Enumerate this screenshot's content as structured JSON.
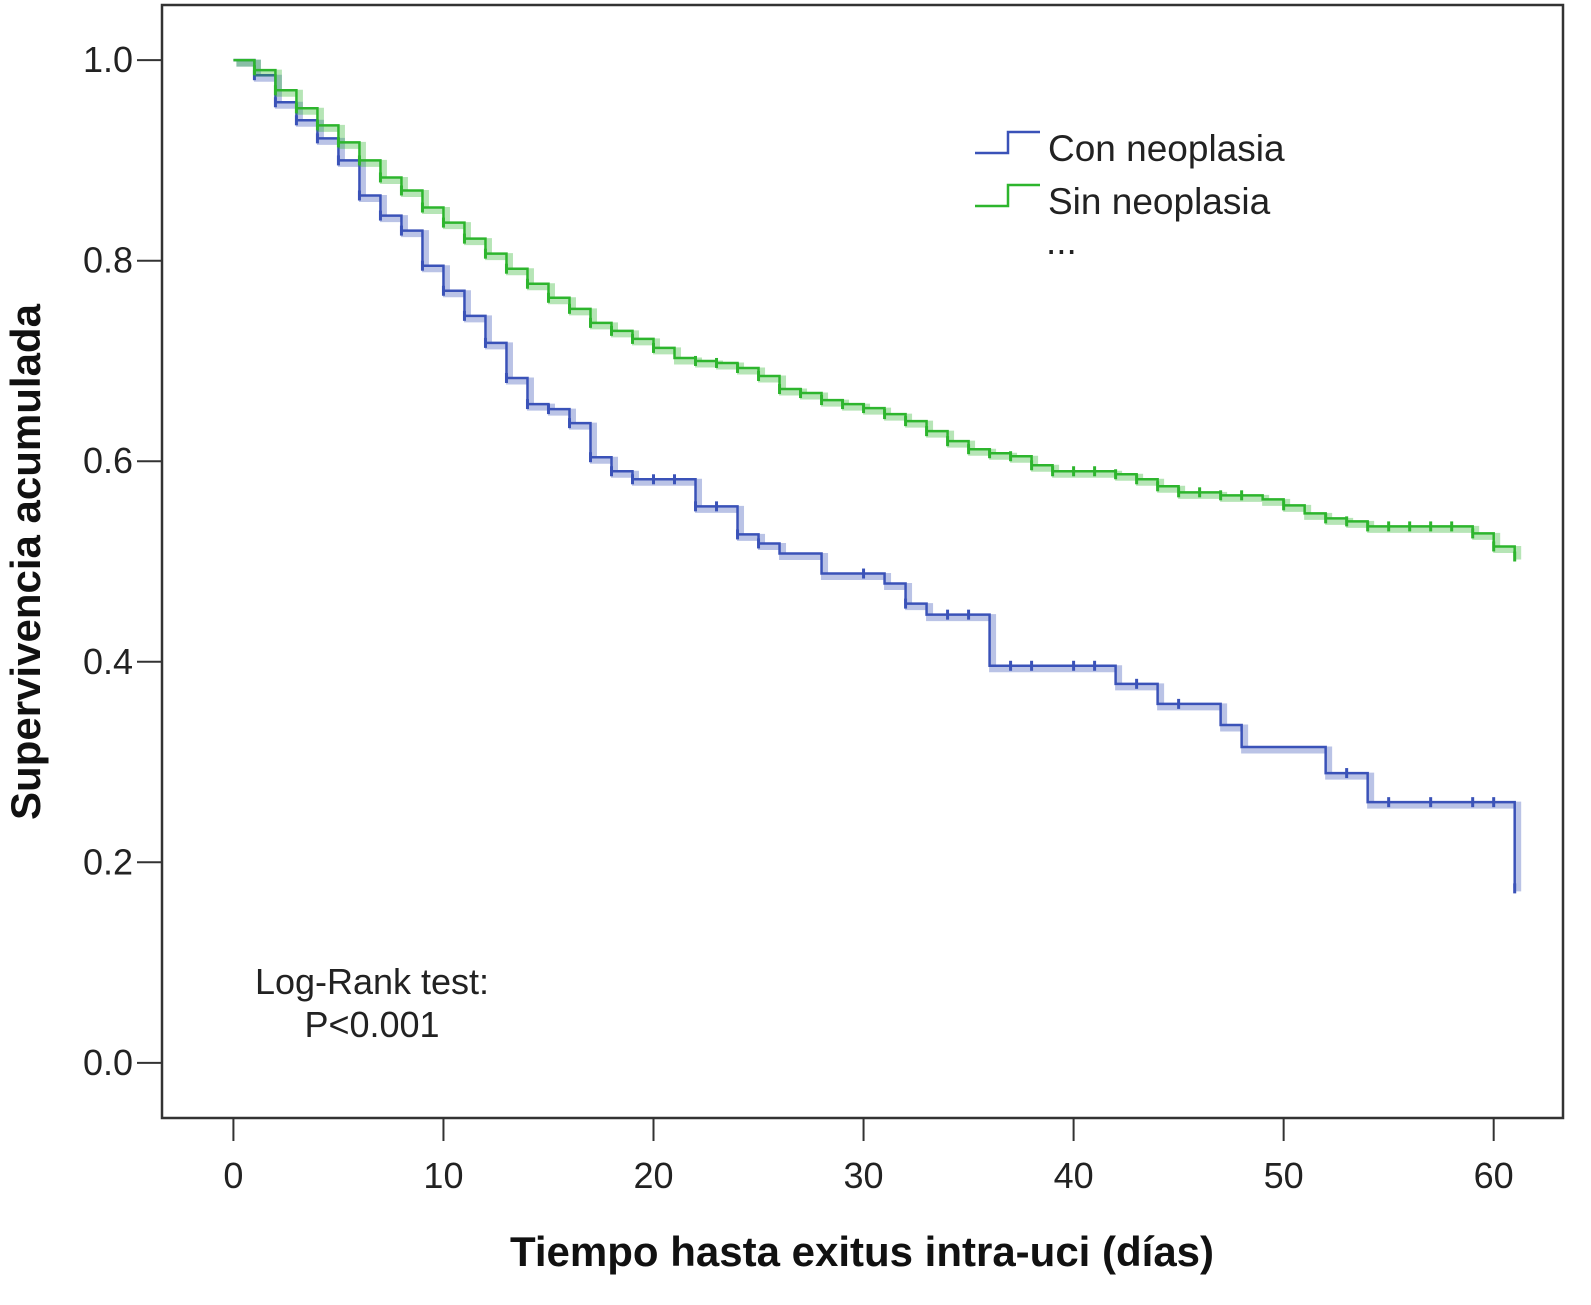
{
  "chart_data": {
    "type": "line",
    "subtype": "kaplan-meier-step",
    "title": "",
    "xlabel": "Tiempo hasta exitus intra-uci (días)",
    "ylabel": "Supervivencia acumulada",
    "xlim": [
      -3.4,
      63.3
    ],
    "ylim": [
      -0.055,
      1.055
    ],
    "xticks": [
      0,
      10,
      20,
      30,
      40,
      50,
      60
    ],
    "xtick_labels": [
      "0",
      "10",
      "20",
      "30",
      "40",
      "50",
      "60"
    ],
    "yticks": [
      0.0,
      0.2,
      0.4,
      0.6,
      0.8,
      1.0
    ],
    "ytick_labels": [
      "0.0",
      "0.2",
      "0.4",
      "0.6",
      "0.8",
      "1.0"
    ],
    "grid": false,
    "legend_position": "top-right",
    "legend_extra": "...",
    "annotation": [
      "Log-Rank test:",
      "P<0.001"
    ],
    "series": [
      {
        "name": "Con neoplasia",
        "color": "#3a52b8",
        "times": [
          0,
          1,
          2,
          3,
          4,
          5,
          6,
          7,
          8,
          9,
          10,
          11,
          12,
          13,
          14,
          15,
          16,
          17,
          18,
          19,
          22,
          24,
          25,
          26,
          28,
          31,
          32,
          33,
          36,
          42,
          44,
          47,
          48,
          52,
          54,
          61
        ],
        "survival": [
          1.0,
          0.985,
          0.958,
          0.94,
          0.922,
          0.9,
          0.865,
          0.845,
          0.83,
          0.795,
          0.77,
          0.745,
          0.718,
          0.683,
          0.657,
          0.652,
          0.638,
          0.604,
          0.59,
          0.582,
          0.555,
          0.527,
          0.518,
          0.508,
          0.488,
          0.478,
          0.458,
          0.447,
          0.396,
          0.378,
          0.358,
          0.337,
          0.315,
          0.289,
          0.26,
          0.174
        ],
        "censored": [
          1,
          2,
          3,
          4,
          5,
          6,
          7,
          8,
          9,
          10,
          11,
          12,
          13,
          14,
          15,
          16,
          17,
          18,
          19,
          20,
          21,
          22,
          23,
          24,
          25,
          30,
          32,
          34,
          35,
          37,
          38,
          40,
          41,
          43,
          45,
          53,
          55,
          57,
          59,
          60,
          61
        ]
      },
      {
        "name": "Sin neoplasia",
        "color": "#2db52d",
        "times": [
          0,
          1,
          2,
          3,
          4,
          5,
          6,
          7,
          8,
          9,
          10,
          11,
          12,
          13,
          14,
          15,
          16,
          17,
          18,
          19,
          20,
          21,
          22,
          23,
          24,
          25,
          26,
          27,
          28,
          29,
          30,
          31,
          32,
          33,
          34,
          35,
          36,
          37,
          38,
          39,
          42,
          43,
          44,
          45,
          47,
          49,
          50,
          51,
          52,
          53,
          54,
          59,
          60,
          61
        ],
        "survival": [
          1.0,
          0.99,
          0.97,
          0.952,
          0.935,
          0.918,
          0.9,
          0.883,
          0.87,
          0.853,
          0.838,
          0.822,
          0.807,
          0.792,
          0.777,
          0.763,
          0.752,
          0.738,
          0.73,
          0.722,
          0.713,
          0.703,
          0.7,
          0.698,
          0.693,
          0.685,
          0.672,
          0.668,
          0.661,
          0.657,
          0.653,
          0.647,
          0.64,
          0.63,
          0.62,
          0.612,
          0.608,
          0.605,
          0.596,
          0.59,
          0.587,
          0.582,
          0.575,
          0.569,
          0.566,
          0.562,
          0.556,
          0.548,
          0.543,
          0.54,
          0.535,
          0.528,
          0.515,
          0.505
        ],
        "censored": [
          1,
          2,
          3,
          4,
          5,
          6,
          7,
          8,
          9,
          10,
          11,
          12,
          13,
          14,
          15,
          16,
          17,
          18,
          19,
          20,
          22,
          23,
          24,
          25,
          26,
          27,
          28,
          29,
          30,
          31,
          32,
          33,
          34,
          35,
          36,
          37,
          38,
          39,
          40,
          41,
          42,
          43,
          44,
          45,
          46,
          47,
          48,
          50,
          52,
          53,
          54,
          55,
          56,
          57,
          58,
          59,
          60,
          61
        ]
      }
    ]
  }
}
